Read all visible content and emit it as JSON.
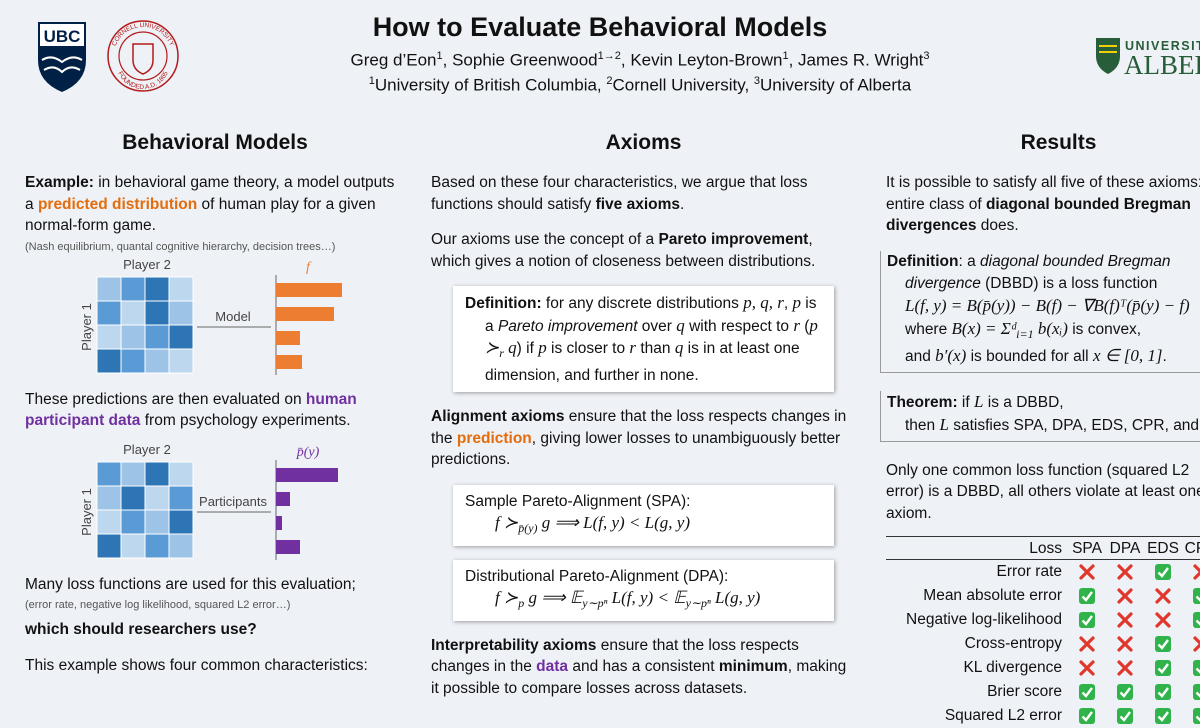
{
  "header": {
    "title": "How to Evaluate Behavioral Models",
    "authors": [
      {
        "t": "Greg d’Eon"
      },
      {
        "t": "1",
        "s": "sup"
      },
      {
        "t": ", Sophie Greenwood"
      },
      {
        "t": "1→2",
        "s": "sup"
      },
      {
        "t": ", Kevin Leyton-Brown"
      },
      {
        "t": "1",
        "s": "sup"
      },
      {
        "t": ", James R. Wright"
      },
      {
        "t": "3",
        "s": "sup"
      }
    ],
    "affiliations": [
      {
        "t": "1",
        "s": "sup"
      },
      {
        "t": "University of British Columbia, "
      },
      {
        "t": "2",
        "s": "sup"
      },
      {
        "t": "Cornell University, "
      },
      {
        "t": "3",
        "s": "sup"
      },
      {
        "t": "University of Alberta"
      }
    ],
    "logos": {
      "ubc": "UBC",
      "cornell_top": "CORNELL UNIVERSITY",
      "cornell_bottom": "FOUNDED A.D. 1865",
      "alberta_small": "UNIVERSITY",
      "alberta_big": "ALBERTA"
    }
  },
  "columns": [
    {
      "heading": "Behavioral Models",
      "blocks": [
        {
          "kind": "p",
          "runs": [
            {
              "t": "Example:",
              "s": "b"
            },
            {
              "t": " in behavioral game theory, a model outputs a "
            },
            {
              "t": "predicted distribution",
              "s": "or"
            },
            {
              "t": " of human play for a given normal-form game."
            }
          ]
        },
        {
          "kind": "note",
          "runs": [
            {
              "t": "(Nash equilibrium, quantal cognitive hierarchy, decision trees…)"
            }
          ]
        },
        {
          "kind": "figure",
          "top": "Player 2",
          "side": "Player 1",
          "arrow": "Model",
          "bars_label": "f",
          "color": "#ed7d31"
        },
        {
          "kind": "p",
          "runs": [
            {
              "t": "These predictions are then evaluated on "
            },
            {
              "t": "human participant data",
              "s": "pu"
            },
            {
              "t": " from psychology experiments."
            }
          ]
        },
        {
          "kind": "figure",
          "top": "Player 2",
          "side": "Player 1",
          "arrow": "Participants",
          "bars_label": "p̄(y)",
          "color": "#7030a0"
        },
        {
          "kind": "p",
          "runs": [
            {
              "t": "Many loss functions are used for this evaluation;"
            }
          ]
        },
        {
          "kind": "note",
          "runs": [
            {
              "t": "(error rate, negative log likelihood, squared L2 error…)"
            }
          ]
        },
        {
          "kind": "p",
          "runs": [
            {
              "t": "which should researchers use?",
              "s": "b"
            }
          ]
        },
        {
          "kind": "p",
          "runs": [
            {
              "t": "This example shows four common characteristics:"
            }
          ]
        }
      ]
    },
    {
      "heading": "Axioms",
      "blocks": [
        {
          "kind": "p",
          "runs": [
            {
              "t": "Based on these four characteristics, we argue that loss functions should satisfy "
            },
            {
              "t": "five axioms",
              "s": "b"
            },
            {
              "t": "."
            }
          ]
        },
        {
          "kind": "p",
          "runs": [
            {
              "t": "Our axioms use the concept of a "
            },
            {
              "t": "Pareto improvement",
              "s": "b"
            },
            {
              "t": ", which gives a notion of closeness between distributions."
            }
          ]
        },
        {
          "kind": "box",
          "runs": [
            {
              "t": "Definition:",
              "s": "b"
            },
            {
              "t": " for any discrete distributions "
            },
            {
              "t": "p, q, r",
              "s": "m"
            },
            {
              "t": ", "
            },
            {
              "t": "p",
              "s": "m"
            },
            {
              "t": " is a "
            },
            {
              "t": "Pareto improvement",
              "s": "i"
            },
            {
              "t": " over "
            },
            {
              "t": "q",
              "s": "m"
            },
            {
              "t": " with respect to "
            },
            {
              "t": "r",
              "s": "m"
            },
            {
              "t": " ("
            },
            {
              "t": "p ≻",
              "s": "m"
            },
            {
              "t": "r",
              "s": "sub"
            },
            {
              "t": " q",
              "s": "m"
            },
            {
              "t": ") if "
            },
            {
              "t": "p",
              "s": "m"
            },
            {
              "t": " is closer to "
            },
            {
              "t": "r",
              "s": "m"
            },
            {
              "t": " than "
            },
            {
              "t": "q",
              "s": "m"
            },
            {
              "t": " is in at least one dimension, and further in none."
            }
          ]
        },
        {
          "kind": "p",
          "runs": [
            {
              "t": "Alignment axioms",
              "s": "b"
            },
            {
              "t": " ensure that the loss respects changes in the "
            },
            {
              "t": "prediction",
              "s": "or"
            },
            {
              "t": ", giving lower losses to unambiguously better predictions."
            }
          ]
        },
        {
          "kind": "box",
          "lines": [
            [
              {
                "t": "Sample Pareto-Alignment (SPA):"
              }
            ],
            [
              {
                "t": "f ≻",
                "s": "m"
              },
              {
                "t": "p̄(y)",
                "s": "sub"
              },
              {
                "t": " g ⟹ L(f, y) < L(g, y)",
                "s": "m"
              }
            ]
          ]
        },
        {
          "kind": "box",
          "lines": [
            [
              {
                "t": "Distributional Pareto-Alignment (DPA):"
              }
            ],
            [
              {
                "t": "f ≻",
                "s": "m"
              },
              {
                "t": "p",
                "s": "sub"
              },
              {
                "t": " g ⟹ 𝔼",
                "s": "m"
              },
              {
                "t": "y∼pⁿ",
                "s": "sub"
              },
              {
                "t": " L(f, y) < 𝔼",
                "s": "m"
              },
              {
                "t": "y∼pⁿ",
                "s": "sub"
              },
              {
                "t": " L(g, y)",
                "s": "m"
              }
            ]
          ]
        },
        {
          "kind": "p",
          "runs": [
            {
              "t": "Interpretability axioms",
              "s": "b"
            },
            {
              "t": " ensure that the loss respects changes in the "
            },
            {
              "t": "data",
              "s": "pu"
            },
            {
              "t": " and has a consistent "
            },
            {
              "t": "minimum",
              "s": "b"
            },
            {
              "t": ", making it possible to compare losses across datasets."
            }
          ]
        }
      ]
    },
    {
      "heading": "Results",
      "blocks": [
        {
          "kind": "p",
          "runs": [
            {
              "t": "It is possible to satisfy all five of these axioms: the entire class of "
            },
            {
              "t": "diagonal bounded Bregman divergences",
              "s": "b"
            },
            {
              "t": " does."
            }
          ]
        },
        {
          "kind": "rule",
          "lines": [
            [
              {
                "t": "Definition",
                "s": "b"
              },
              {
                "t": ": a "
              },
              {
                "t": "diagonal bounded Bregman",
                "s": "i"
              }
            ],
            [
              {
                "t": "divergence",
                "s": "i"
              },
              {
                "t": " (DBBD) is a loss function"
              }
            ],
            [
              {
                "t": "L(f, y) = B(p̄(y)) − B(f) − ∇B(f)ᵀ(p̄(y) − f)",
                "s": "m"
              }
            ],
            [
              {
                "t": "where "
              },
              {
                "t": "B(x) = Σᵈ",
                "s": "m"
              },
              {
                "t": "i=1",
                "s": "sub"
              },
              {
                "t": " b(xᵢ)",
                "s": "m"
              },
              {
                "t": " is convex,"
              }
            ],
            [
              {
                "t": "and "
              },
              {
                "t": "b′(x)",
                "s": "m"
              },
              {
                "t": " is bounded for all "
              },
              {
                "t": "x ∈ [0, 1]",
                "s": "m"
              },
              {
                "t": "."
              }
            ]
          ]
        },
        {
          "kind": "rule",
          "lines": [
            [
              {
                "t": "Theorem:",
                "s": "b"
              },
              {
                "t": " if "
              },
              {
                "t": "L",
                "s": "m"
              },
              {
                "t": " is a DBBD,"
              }
            ],
            [
              {
                "t": "then "
              },
              {
                "t": "L",
                "s": "m"
              },
              {
                "t": " satisfies SPA, DPA, EDS, CPR, and"
              }
            ]
          ]
        },
        {
          "kind": "p",
          "runs": [
            {
              "t": "Only one common loss function (squared L2 error) is a DBBD, all others violate at least one axiom."
            }
          ]
        },
        {
          "kind": "table",
          "header": [
            "Loss",
            "SPA",
            "DPA",
            "EDS",
            "CPR"
          ],
          "rows": [
            {
              "label": "Error rate",
              "marks": [
                false,
                false,
                true,
                false
              ]
            },
            {
              "label": "Mean absolute error",
              "marks": [
                true,
                false,
                false,
                true
              ]
            },
            {
              "label": "Negative log-likelihood",
              "marks": [
                true,
                false,
                false,
                true
              ]
            },
            {
              "label": "Cross-entropy",
              "marks": [
                false,
                false,
                true,
                false
              ]
            },
            {
              "label": "KL divergence",
              "marks": [
                false,
                false,
                true,
                true
              ]
            },
            {
              "label": "Brier score",
              "marks": [
                true,
                true,
                true,
                true
              ]
            },
            {
              "label": "Squared L2 error",
              "marks": [
                true,
                true,
                true,
                true
              ]
            }
          ]
        }
      ]
    }
  ]
}
